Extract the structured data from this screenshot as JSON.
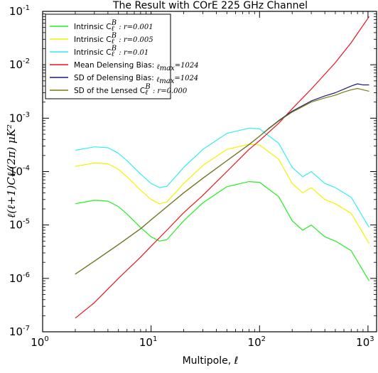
{
  "chart_data": {
    "type": "line",
    "title": "The Result with COrE 225 GHz Channel",
    "xlabel": "Multipole, ℓ",
    "ylabel": "ℓ(ℓ+1)Cℓ/(2π) μK²",
    "xscale": "log",
    "yscale": "log",
    "xlim": [
      1,
      1200
    ],
    "ylim": [
      1e-07,
      0.1
    ],
    "xticks": [
      {
        "value": 1,
        "base": "10",
        "exp": "0"
      },
      {
        "value": 10,
        "base": "10",
        "exp": "1"
      },
      {
        "value": 100,
        "base": "10",
        "exp": "2"
      },
      {
        "value": 1000,
        "base": "10",
        "exp": "3"
      }
    ],
    "yticks": [
      {
        "value": 1e-07,
        "base": "10",
        "exp": "-7"
      },
      {
        "value": 1e-06,
        "base": "10",
        "exp": "-6"
      },
      {
        "value": 1e-05,
        "base": "10",
        "exp": "-5"
      },
      {
        "value": 0.0001,
        "base": "10",
        "exp": "-4"
      },
      {
        "value": 0.001,
        "base": "10",
        "exp": "-3"
      },
      {
        "value": 0.01,
        "base": "10",
        "exp": "-2"
      },
      {
        "value": 0.1,
        "base": "10",
        "exp": "-1"
      }
    ],
    "grid": false,
    "legend_position": "top-left",
    "series": [
      {
        "name": "Intrinsic C_ℓ^B : r=0.001",
        "label_text": "Intrinsic C",
        "label_math": "ℓ",
        "label_sup": "B",
        "label_tail": " : r=0.001",
        "color": "#22ee22",
        "x": [
          2,
          3,
          4,
          5,
          6,
          8,
          10,
          12,
          14,
          20,
          30,
          50,
          80,
          100,
          150,
          200,
          250,
          300,
          400,
          500,
          700,
          1024
        ],
        "y": [
          2.5e-05,
          2.9e-05,
          2.8e-05,
          2.2e-05,
          1.6e-05,
          9e-06,
          6e-06,
          5e-06,
          5.3e-06,
          1.2e-05,
          2.6e-05,
          5.2e-05,
          6.5e-05,
          6.3e-05,
          3.4e-05,
          1.2e-05,
          8e-06,
          1e-05,
          6e-06,
          5e-06,
          3.3e-06,
          9e-07
        ]
      },
      {
        "name": "Intrinsic C_ℓ^B : r=0.005",
        "label_text": "Intrinsic C",
        "label_math": "ℓ",
        "label_sup": "B",
        "label_tail": " : r=0.005",
        "color": "#f2f200",
        "x": [
          2,
          3,
          4,
          5,
          6,
          8,
          10,
          12,
          14,
          20,
          30,
          50,
          80,
          100,
          150,
          200,
          250,
          300,
          400,
          500,
          700,
          1024
        ],
        "y": [
          0.000125,
          0.000145,
          0.00014,
          0.00011,
          8e-05,
          4.5e-05,
          3e-05,
          2.5e-05,
          2.7e-05,
          6e-05,
          0.00013,
          0.00026,
          0.000325,
          0.000315,
          0.00017,
          6e-05,
          4e-05,
          5e-05,
          3e-05,
          2.5e-05,
          1.65e-05,
          4.5e-06
        ]
      },
      {
        "name": "Intrinsic C_ℓ^B : r=0.01",
        "label_text": "Intrinsic C",
        "label_math": "ℓ",
        "label_sup": "B",
        "label_tail": " : r=0.01",
        "color": "#33eef2",
        "x": [
          2,
          3,
          4,
          5,
          6,
          8,
          10,
          12,
          14,
          20,
          30,
          50,
          80,
          100,
          150,
          200,
          250,
          300,
          400,
          500,
          700,
          1024
        ],
        "y": [
          0.00025,
          0.00029,
          0.00028,
          0.00022,
          0.00016,
          9e-05,
          6e-05,
          5e-05,
          5.3e-05,
          0.00012,
          0.00026,
          0.00052,
          0.00065,
          0.00063,
          0.00034,
          0.00012,
          8e-05,
          0.0001,
          6e-05,
          5e-05,
          3.3e-05,
          9e-06
        ]
      },
      {
        "name": "Mean Delensing Bias: ℓ_max=1024",
        "label_text": "Mean Delensing Bias: ",
        "label_math": "ℓ",
        "label_sub": "max",
        "label_tail": "=1024",
        "color": "#e8141e",
        "x": [
          2,
          3,
          5,
          8,
          10,
          14,
          20,
          30,
          50,
          80,
          100,
          150,
          200,
          300,
          500,
          700,
          1024
        ],
        "y": [
          1.8e-07,
          3.5e-07,
          1e-06,
          2.5e-06,
          4e-06,
          8e-06,
          1.7e-05,
          3.6e-05,
          0.0001,
          0.00026,
          0.00038,
          0.0008,
          0.0015,
          0.0035,
          0.011,
          0.026,
          0.08
        ]
      },
      {
        "name": "SD of Delensing Bias: ℓ_max=1024",
        "label_text": "SD of Delensing Bias: ",
        "label_math": "ℓ",
        "label_sub": "max",
        "label_tail": "=1024",
        "color": "#1c1c78",
        "x": [
          2,
          3,
          5,
          8,
          10,
          14,
          20,
          30,
          50,
          80,
          100,
          120,
          150,
          200,
          300,
          400,
          500,
          600,
          700,
          800,
          900,
          1024
        ],
        "y": [
          1.2e-06,
          2.1e-06,
          4.3e-06,
          8.5e-06,
          1.25e-05,
          2.2e-05,
          4e-05,
          7.5e-05,
          0.00016,
          0.00032,
          0.00046,
          0.00063,
          0.0009,
          0.00135,
          0.0021,
          0.0026,
          0.003,
          0.0035,
          0.004,
          0.0044,
          0.0042,
          0.0042
        ]
      },
      {
        "name": "SD of the Lensed C_ℓ^B : r=0.000",
        "label_text": "SD of the Lensed C",
        "label_math": "ℓ",
        "label_sup": "B",
        "label_tail": " : r=0.000",
        "color": "#7a7a14",
        "x": [
          2,
          3,
          5,
          8,
          10,
          14,
          20,
          30,
          50,
          80,
          100,
          120,
          150,
          200,
          300,
          400,
          500,
          600,
          700,
          800,
          900,
          1024
        ],
        "y": [
          1.2e-06,
          2.1e-06,
          4.3e-06,
          8.5e-06,
          1.25e-05,
          2.2e-05,
          4e-05,
          7.5e-05,
          0.00016,
          0.00032,
          0.00046,
          0.00062,
          0.00088,
          0.0013,
          0.002,
          0.0024,
          0.0027,
          0.0031,
          0.0034,
          0.0036,
          0.0034,
          0.0032
        ]
      }
    ]
  }
}
